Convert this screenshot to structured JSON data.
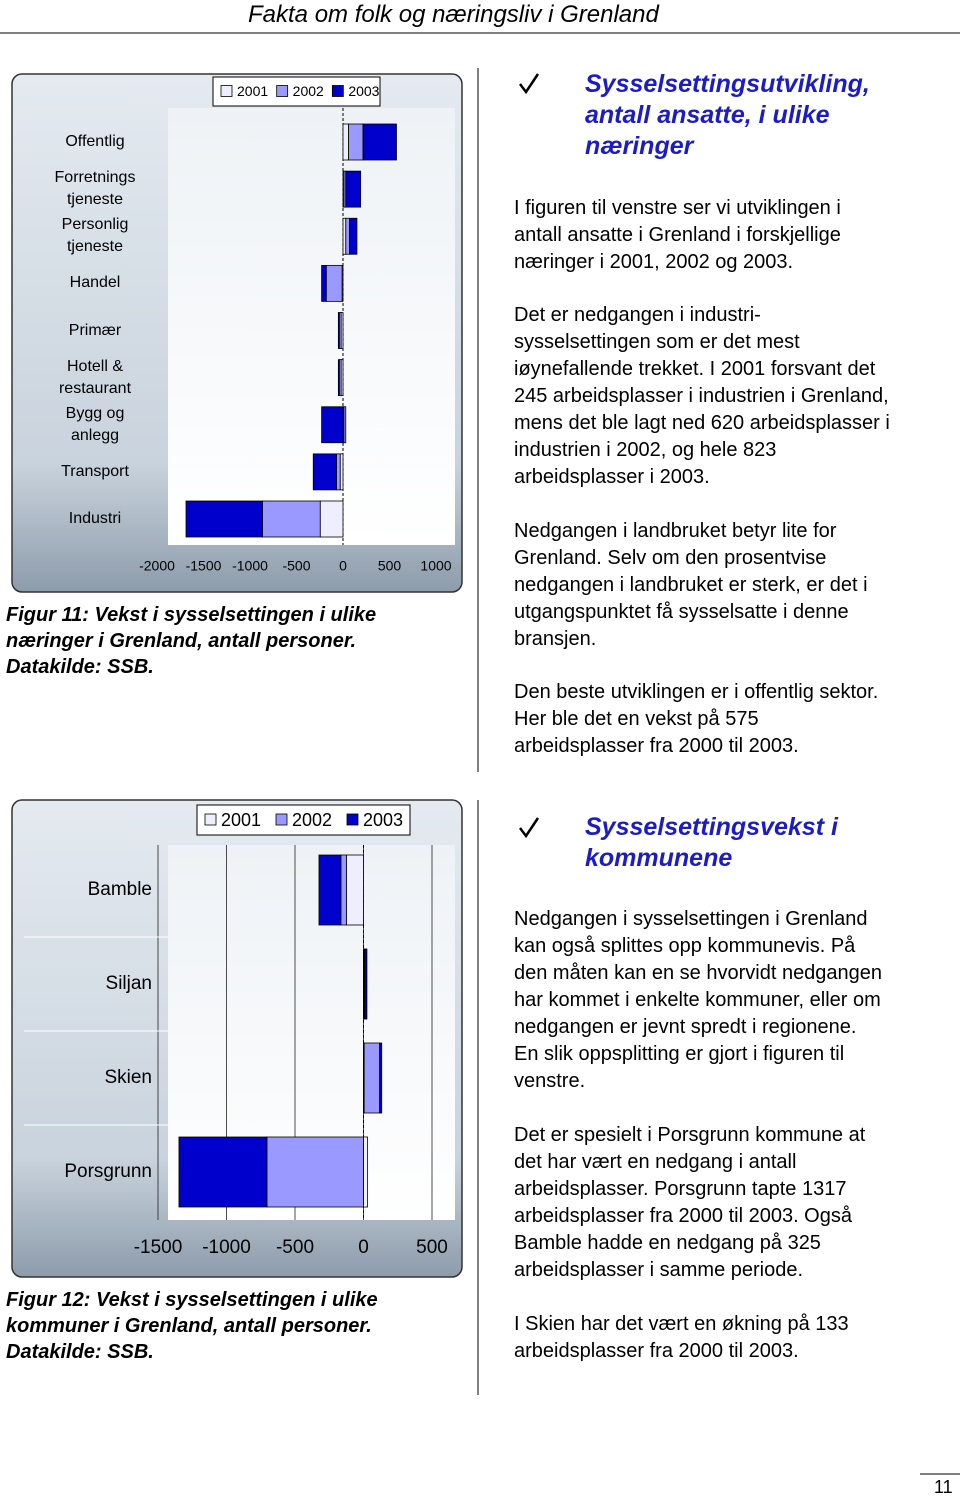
{
  "document": {
    "header": "Fakta om folk og næringsliv i Grenland",
    "page_number": "11",
    "figure_11_caption": [
      "Figur 11: Vekst i sysselsettingen i ulike",
      "næringer i Grenland, antall personer.",
      "Datakilde: SSB."
    ],
    "figure_12_caption": [
      "Figur 12: Vekst i sysselsettingen i ulike",
      "kommuner i Grenland, antall personer.",
      "Datakilde: SSB."
    ],
    "section_1": {
      "heading": [
        "Sysselsettingsutvikling,",
        "antall ansatte, i ulike",
        "næringer"
      ],
      "paragraphs": [
        [
          "I figuren til venstre ser vi utviklingen i",
          "antall ansatte i Grenland i forskjellige",
          "næringer i 2001, 2002 og 2003."
        ],
        [
          "Det er nedgangen i industri-",
          "sysselsettingen som er det mest",
          "iøynefallende trekket. I 2001 forsvant det",
          "245 arbeidsplasser i industrien i Grenland,",
          "mens det ble lagt ned 620 arbeidsplasser i",
          "industrien i 2002, og hele 823",
          "arbeidsplasser i 2003."
        ],
        [
          "Nedgangen i landbruket betyr lite for",
          "Grenland. Selv om den prosentvise",
          "nedgangen i landbruket er sterk, er det i",
          "utgangspunktet få sysselsatte i denne",
          "bransjen."
        ],
        [
          "Den beste utviklingen er i offentlig sektor.",
          "Her ble det en vekst på 575",
          "arbeidsplasser fra 2000 til 2003."
        ]
      ]
    },
    "section_2": {
      "heading": [
        "Sysselsettingsvekst i",
        "kommunene"
      ],
      "paragraphs": [
        [
          "Nedgangen i sysselsettingen i Grenland",
          "kan også splittes opp kommunevis. På",
          "den måten kan en se hvorvidt nedgangen",
          "har kommet i enkelte kommuner, eller om",
          "nedgangen er jevnt spredt i regionene.",
          "En slik oppsplitting er gjort i figuren til",
          "venstre."
        ],
        [
          "Det er spesielt i Porsgrunn kommune at",
          "det har vært en nedgang i antall",
          "arbeidsplasser.  Porsgrunn tapte 1317",
          "arbeidsplasser fra 2000 til 2003.  Også",
          "Bamble hadde en nedgang på 325",
          "arbeidsplasser i samme periode."
        ],
        [
          "I Skien har det vært en økning på 133",
          "arbeidsplasser fra 2000 til 2003."
        ]
      ]
    }
  },
  "chart_data": [
    {
      "type": "bar",
      "orientation": "horizontal",
      "stacked": true,
      "categories": [
        "Offentlig",
        "Forretnings tjeneste",
        "Personlig tjeneste",
        "Handel",
        "Primær",
        "Hotell & restaurant",
        "Bygg og anlegg",
        "Transport",
        "Industri"
      ],
      "series": [
        {
          "name": "2001",
          "color": "#eeeeff",
          "values": [
            60,
            10,
            30,
            -10,
            -20,
            -20,
            10,
            -30,
            -245
          ]
        },
        {
          "name": "2002",
          "color": "#9999ff",
          "values": [
            155,
            20,
            40,
            -170,
            -20,
            -20,
            20,
            -40,
            -620
          ]
        },
        {
          "name": "2003",
          "color": "#0000cc",
          "values": [
            360,
            160,
            80,
            -50,
            -10,
            -10,
            -230,
            -250,
            -823
          ]
        }
      ],
      "xlim": [
        -2000,
        1000
      ],
      "xticks": [
        -2000,
        -1500,
        -1000,
        -500,
        0,
        500,
        1000
      ],
      "grid": false,
      "legend": "top"
    },
    {
      "type": "bar",
      "orientation": "horizontal",
      "stacked": true,
      "categories": [
        "Bamble",
        "Siljan",
        "Skien",
        "Porsgrunn"
      ],
      "series": [
        {
          "name": "2001",
          "color": "#eeeeff",
          "values": [
            -125,
            5,
            5,
            30
          ]
        },
        {
          "name": "2002",
          "color": "#9999ff",
          "values": [
            -40,
            5,
            113,
            -705
          ]
        },
        {
          "name": "2003",
          "color": "#0000cc",
          "values": [
            -160,
            15,
            15,
            -642
          ]
        }
      ],
      "xlim": [
        -1500,
        500
      ],
      "xticks": [
        -1500,
        -1000,
        -500,
        0,
        500
      ],
      "grid": true,
      "legend": "top"
    }
  ]
}
